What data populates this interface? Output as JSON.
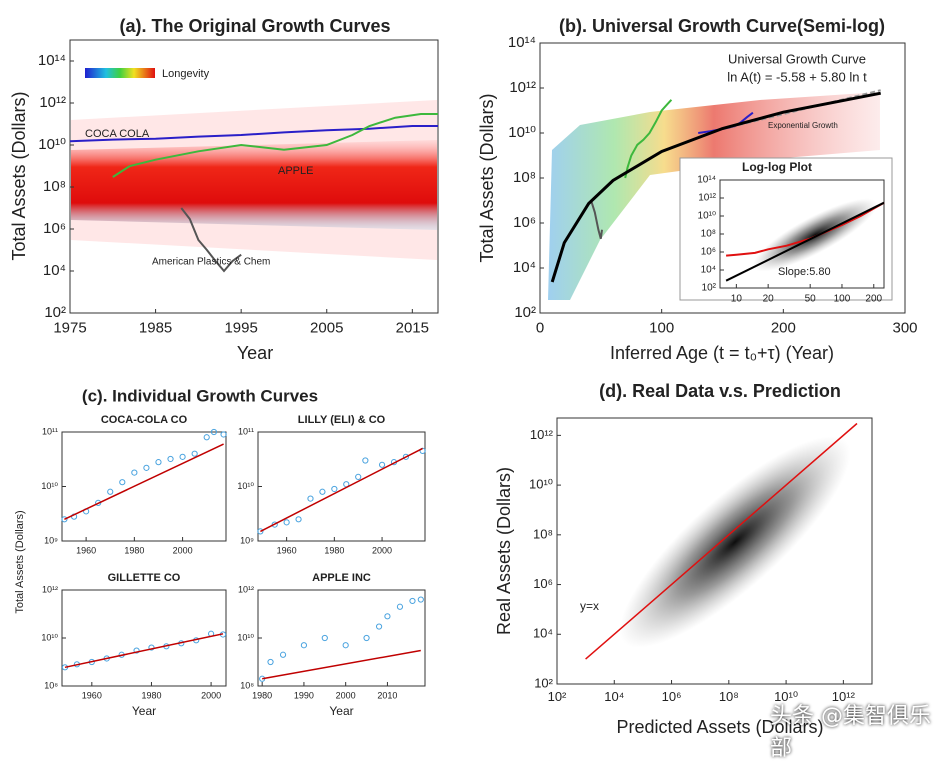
{
  "chart_data": [
    {
      "type": "line",
      "title": "(a). The Original Growth Curves",
      "xlabel": "Year",
      "ylabel": "Total Assets (Dollars)",
      "xlim": [
        1975,
        2018
      ],
      "xticks": [
        1975,
        1985,
        1995,
        2005,
        2015
      ],
      "ylog": true,
      "ylim": [
        100,
        1000000000000000.0
      ],
      "yticks": [
        {
          "value": 100,
          "label": "10²"
        },
        {
          "value": 10000.0,
          "label": "10⁴"
        },
        {
          "value": 1000000.0,
          "label": "10⁶"
        },
        {
          "value": 100000000.0,
          "label": "10⁸"
        },
        {
          "value": 10000000000.0,
          "label": "10¹⁰"
        },
        {
          "value": 1000000000000.0,
          "label": "10¹²"
        },
        {
          "value": 100000000000000.0,
          "label": "10¹⁴"
        }
      ],
      "colorbar_label": "Longevity",
      "series": [
        {
          "name": "COCA COLA",
          "color": "#2a1fc8",
          "x": [
            1975,
            1980,
            1985,
            1990,
            1995,
            2000,
            2005,
            2010,
            2015,
            2018
          ],
          "values": [
            15000000000.0,
            18000000000.0,
            20000000000.0,
            25000000000.0,
            30000000000.0,
            40000000000.0,
            50000000000.0,
            60000000000.0,
            80000000000.0,
            80000000000.0
          ]
        },
        {
          "name": "APPLE",
          "color": "#3db83d",
          "x": [
            1980,
            1982,
            1985,
            1990,
            1995,
            2000,
            2005,
            2008,
            2010,
            2013,
            2016,
            2018
          ],
          "values": [
            300000000.0,
            1000000000.0,
            2000000000.0,
            5000000000.0,
            10000000000.0,
            6000000000.0,
            10000000000.0,
            30000000000.0,
            80000000000.0,
            200000000000.0,
            300000000000.0,
            300000000000.0
          ]
        },
        {
          "name": "American Plastics & Chem",
          "color": "#555555",
          "x": [
            1988,
            1989,
            1990,
            1991,
            1992,
            1993,
            1994,
            1995
          ],
          "values": [
            10000000.0,
            3000000.0,
            300000.0,
            100000.0,
            30000.0,
            10000.0,
            30000.0,
            60000.0
          ]
        }
      ]
    },
    {
      "type": "line",
      "title": "(b). Universal Growth Curve(Semi-log)",
      "xlabel": "Inferred Age (t = t₀+τ) (Year)",
      "ylabel": "Total Assets (Dollars)",
      "xlim": [
        0,
        300
      ],
      "xticks": [
        0,
        100,
        200,
        300
      ],
      "ylog": true,
      "ylim": [
        100,
        100000000000000.0
      ],
      "yticks": [
        {
          "value": 100,
          "label": "10²"
        },
        {
          "value": 10000.0,
          "label": "10⁴"
        },
        {
          "value": 1000000.0,
          "label": "10⁶"
        },
        {
          "value": 100000000.0,
          "label": "10⁸"
        },
        {
          "value": 10000000000.0,
          "label": "10¹⁰"
        },
        {
          "value": 1000000000000.0,
          "label": "10¹²"
        },
        {
          "value": 100000000000000.0,
          "label": "10¹⁴"
        }
      ],
      "annotations": [
        "ln A(t) = -5.58 + 5.80 ln t"
      ],
      "series": [
        {
          "color": "#3db83d",
          "x": [
            70,
            72,
            75,
            80,
            85,
            90,
            95,
            100,
            105,
            108
          ],
          "values": [
            100000000.0,
            300000000.0,
            1000000000.0,
            3000000000.0,
            5000000000.0,
            10000000000.0,
            30000000000.0,
            100000000000.0,
            200000000000.0,
            300000000000.0
          ]
        },
        {
          "color": "#2a1fc8",
          "x": [
            130,
            140,
            150,
            160,
            165,
            170,
            175
          ],
          "values": [
            10000000000.0,
            12000000000.0,
            15000000000.0,
            20000000000.0,
            30000000000.0,
            50000000000.0,
            80000000000.0
          ]
        },
        {
          "color": "#555555",
          "x": [
            42,
            45,
            48,
            50,
            51
          ],
          "values": [
            10000000.0,
            3000000.0,
            500000.0,
            200000.0,
            500000.0
          ]
        },
        {
          "name": "Exponential Growth",
          "color": "#999999",
          "dashed": true,
          "x": [
            150,
            280
          ],
          "values": [
            15000000000.0,
            800000000000.0
          ]
        },
        {
          "name": "Universal Growth Curve",
          "color": "#000000",
          "x": [
            10,
            20,
            40,
            60,
            100,
            150,
            200,
            280
          ],
          "values": [
            2380,
            132600,
            7390000,
            77600000,
            1500000000.0,
            15800000000.0,
            83700000000.0,
            590000000000.0
          ]
        }
      ]
    },
    {
      "type": "line",
      "title": "Log-log Plot",
      "xlog": true,
      "xlim": [
        7,
        250
      ],
      "xticks": [
        10,
        20,
        50,
        100,
        200
      ],
      "ylog": true,
      "ylim": [
        100,
        100000000000000.0
      ],
      "yticks": [
        {
          "value": 100,
          "label": "10²"
        },
        {
          "value": 10000.0,
          "label": "10⁴"
        },
        {
          "value": 1000000.0,
          "label": "10⁶"
        },
        {
          "value": 100000000.0,
          "label": "10⁸"
        },
        {
          "value": 10000000000.0,
          "label": "10¹⁰"
        },
        {
          "value": 1000000000000.0,
          "label": "10¹²"
        },
        {
          "value": 100000000000000.0,
          "label": "10¹⁴"
        }
      ],
      "annotations": [
        "Slope:5.80"
      ],
      "series": [
        {
          "color": "#e01010",
          "x": [
            8,
            10,
            15,
            20,
            30,
            50,
            100,
            150,
            250
          ],
          "values": [
            400000.0,
            500000.0,
            800000.0,
            2000000.0,
            5000000.0,
            30000000.0,
            1000000000.0,
            10000000000.0,
            300000000000.0
          ]
        },
        {
          "color": "#000000",
          "x": [
            8,
            250
          ],
          "values": [
            650,
            300000000000.0
          ]
        }
      ]
    },
    {
      "type": "scatter",
      "title": "COCA-COLA CO",
      "xlim": [
        1950,
        2018
      ],
      "xticks": [
        1960,
        1980,
        2000
      ],
      "ylog": true,
      "ylim": [
        1000000000.0,
        100000000000.0
      ],
      "yticks": [
        {
          "value": 1000000000.0,
          "label": "10⁹"
        },
        {
          "value": 10000000000.0,
          "label": "10¹⁰"
        },
        {
          "value": 100000000000.0,
          "label": "10¹¹"
        }
      ],
      "series": [
        {
          "style": "circles",
          "color": "#4aa3df",
          "x": [
            1951,
            1955,
            1960,
            1965,
            1970,
            1975,
            1980,
            1985,
            1990,
            1995,
            2000,
            2005,
            2010,
            2013,
            2017
          ],
          "values": [
            2500000000.0,
            2800000000.0,
            3500000000.0,
            5000000000.0,
            8000000000.0,
            12000000000.0,
            18000000000.0,
            22000000000.0,
            28000000000.0,
            32000000000.0,
            35000000000.0,
            40000000000.0,
            80000000000.0,
            100000000000.0,
            90000000000.0
          ]
        },
        {
          "style": "line",
          "color": "#c00000",
          "x": [
            1951,
            2017
          ],
          "values": [
            2500000000.0,
            60000000000.0
          ]
        }
      ]
    },
    {
      "type": "scatter",
      "title": "LILLY (ELI) & CO",
      "xlim": [
        1948,
        2018
      ],
      "xticks": [
        1960,
        1980,
        2000
      ],
      "ylog": true,
      "ylim": [
        1000000000.0,
        100000000000.0
      ],
      "yticks": [
        {
          "value": 1000000000.0,
          "label": "10⁹"
        },
        {
          "value": 10000000000.0,
          "label": "10¹⁰"
        },
        {
          "value": 100000000000.0,
          "label": "10¹¹"
        }
      ],
      "series": [
        {
          "style": "circles",
          "color": "#4aa3df",
          "x": [
            1949,
            1955,
            1960,
            1965,
            1970,
            1975,
            1980,
            1985,
            1990,
            1993,
            2000,
            2005,
            2010,
            2017
          ],
          "values": [
            1500000000.0,
            2000000000.0,
            2200000000.0,
            2500000000.0,
            6000000000.0,
            8000000000.0,
            9000000000.0,
            11000000000.0,
            15000000000.0,
            30000000000.0,
            25000000000.0,
            28000000000.0,
            35000000000.0,
            45000000000.0
          ]
        },
        {
          "style": "line",
          "color": "#c00000",
          "x": [
            1949,
            2017
          ],
          "values": [
            1500000000.0,
            50000000000.0
          ]
        }
      ]
    },
    {
      "type": "scatter",
      "title": "GILLETTE CO",
      "xlabel": "Year",
      "xlim": [
        1950,
        2005
      ],
      "xticks": [
        1960,
        1980,
        2000
      ],
      "ylog": true,
      "ylim": [
        100000000.0,
        1000000000000.0
      ],
      "yticks": [
        {
          "value": 100000000.0,
          "label": "10⁸"
        },
        {
          "value": 10000000000.0,
          "label": "10¹⁰"
        },
        {
          "value": 1000000000000.0,
          "label": "10¹²"
        }
      ],
      "series": [
        {
          "style": "circles",
          "color": "#4aa3df",
          "x": [
            1951,
            1955,
            1960,
            1965,
            1970,
            1975,
            1980,
            1985,
            1990,
            1995,
            2000,
            2004
          ],
          "values": [
            600000000.0,
            800000000.0,
            1000000000.0,
            1400000000.0,
            2000000000.0,
            3000000000.0,
            4000000000.0,
            4500000000.0,
            6000000000.0,
            8000000000.0,
            15000000000.0,
            14000000000.0
          ]
        },
        {
          "style": "line",
          "color": "#c00000",
          "x": [
            1951,
            2004
          ],
          "values": [
            600000000.0,
            15000000000.0
          ]
        }
      ]
    },
    {
      "type": "scatter",
      "title": "APPLE INC",
      "xlabel": "Year",
      "xlim": [
        1979,
        2019
      ],
      "xticks": [
        1980,
        1990,
        2000,
        2010
      ],
      "ylog": true,
      "ylim": [
        100000000.0,
        1000000000000.0
      ],
      "yticks": [
        {
          "value": 100000000.0,
          "label": "10⁸"
        },
        {
          "value": 10000000000.0,
          "label": "10¹⁰"
        },
        {
          "value": 1000000000000.0,
          "label": "10¹²"
        }
      ],
      "series": [
        {
          "style": "circles",
          "color": "#4aa3df",
          "x": [
            1980,
            1982,
            1985,
            1990,
            1995,
            2000,
            2005,
            2008,
            2010,
            2013,
            2016,
            2018
          ],
          "values": [
            200000000.0,
            1000000000.0,
            2000000000.0,
            5000000000.0,
            10000000000.0,
            5000000000.0,
            10000000000.0,
            30000000000.0,
            80000000000.0,
            200000000000.0,
            350000000000.0,
            400000000000.0
          ]
        },
        {
          "style": "line",
          "color": "#c00000",
          "x": [
            1980,
            2018
          ],
          "values": [
            200000000.0,
            3000000000.0
          ]
        }
      ]
    },
    {
      "type": "line",
      "title": "(d). Real Data v.s. Prediction",
      "xlabel": "Predicted Assets (Dollars)",
      "ylabel": "Real Assets (Dollars)",
      "xlog": true,
      "xlim": [
        100,
        10000000000000.0
      ],
      "xticks": [
        {
          "value": 100,
          "label": "10²"
        },
        {
          "value": 10000.0,
          "label": "10⁴"
        },
        {
          "value": 1000000.0,
          "label": "10⁶"
        },
        {
          "value": 100000000.0,
          "label": "10⁸"
        },
        {
          "value": 10000000000.0,
          "label": "10¹⁰"
        },
        {
          "value": 1000000000000.0,
          "label": "10¹²"
        }
      ],
      "ylog": true,
      "ylim": [
        100,
        5000000000000.0
      ],
      "yticks": [
        {
          "value": 100,
          "label": "10²"
        },
        {
          "value": 10000.0,
          "label": "10⁴"
        },
        {
          "value": 1000000.0,
          "label": "10⁶"
        },
        {
          "value": 100000000.0,
          "label": "10⁸"
        },
        {
          "value": 10000000000.0,
          "label": "10¹⁰"
        },
        {
          "value": 1000000000000.0,
          "label": "10¹²"
        }
      ],
      "annotations": [
        "y=x"
      ],
      "series": [
        {
          "color": "#e01010",
          "x": [
            1000,
            3000000000000.0
          ],
          "values": [
            1000,
            3000000000000.0
          ]
        }
      ]
    }
  ],
  "panel_c": {
    "title": "(c). Individual Growth Curves",
    "ylabel": "Total Assets (Dollars)"
  },
  "watermark": "头条 @集智俱乐部"
}
